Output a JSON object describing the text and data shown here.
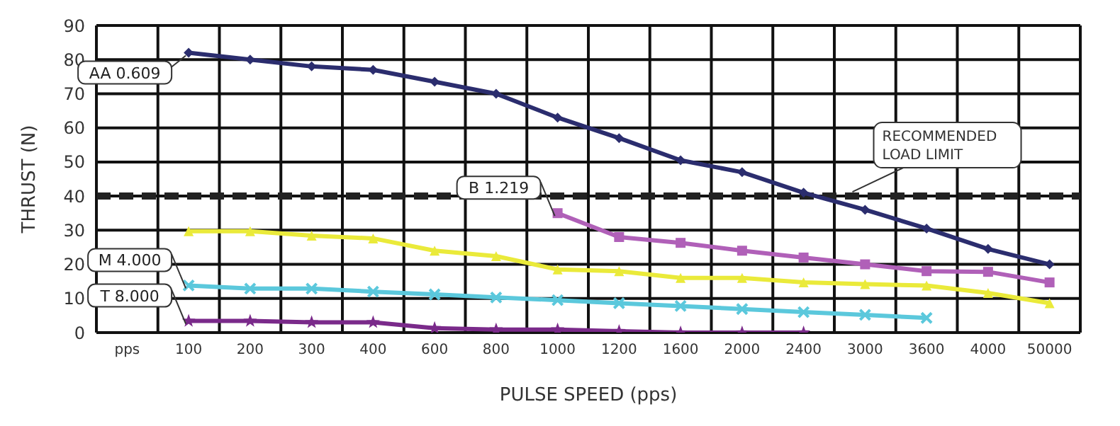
{
  "chart_data": {
    "type": "line",
    "xlabel": "PULSE SPEED (pps)",
    "ylabel": "THRUST (N)",
    "categories": [
      "pps",
      "100",
      "200",
      "300",
      "400",
      "600",
      "800",
      "1000",
      "1200",
      "1600",
      "2000",
      "2400",
      "3000",
      "3600",
      "4000",
      "50000"
    ],
    "ylim": [
      0,
      90
    ],
    "yticks": [
      0,
      10,
      20,
      30,
      40,
      50,
      60,
      70,
      80,
      90
    ],
    "grid": true,
    "line_style": "solid",
    "series": [
      {
        "name": "AA 0.609",
        "color": "#2b2d6e",
        "marker": "diamond",
        "values": [
          null,
          82,
          80,
          78,
          77,
          73.5,
          70,
          63,
          57,
          50.5,
          47,
          41,
          36,
          30.5,
          24.5,
          20
        ]
      },
      {
        "name": "B 1.219",
        "color": "#b060b8",
        "marker": "square",
        "values": [
          null,
          null,
          null,
          null,
          null,
          null,
          null,
          35,
          28,
          26.3,
          24,
          22,
          20,
          18,
          17.8,
          14.7
        ]
      },
      {
        "color": "#eaea3a",
        "marker": "triangle",
        "values": [
          null,
          29.7,
          29.7,
          28.4,
          27.6,
          24,
          22.4,
          18.5,
          18,
          16,
          16,
          14.7,
          14.2,
          13.8,
          11.6,
          8.6
        ]
      },
      {
        "name": "M 4.000",
        "color": "#5bc8dc",
        "marker": "cross",
        "values": [
          null,
          13.8,
          12.9,
          12.9,
          12,
          11.2,
          10.3,
          9.5,
          8.6,
          7.8,
          6.9,
          6,
          5.2,
          4.3,
          null,
          null
        ]
      },
      {
        "name": "T 8.000",
        "color": "#7a2a8a",
        "marker": "star",
        "values": [
          null,
          3.4,
          3.4,
          3,
          3,
          1.3,
          0.9,
          0.9,
          0.4,
          0,
          0,
          0,
          null,
          null,
          null,
          null
        ]
      }
    ],
    "ref_lines": [
      {
        "axis": "y",
        "value": 40,
        "label": "RECOMMENDED LOAD LIMIT",
        "color": "#222222",
        "line_style": "dashed"
      }
    ]
  }
}
